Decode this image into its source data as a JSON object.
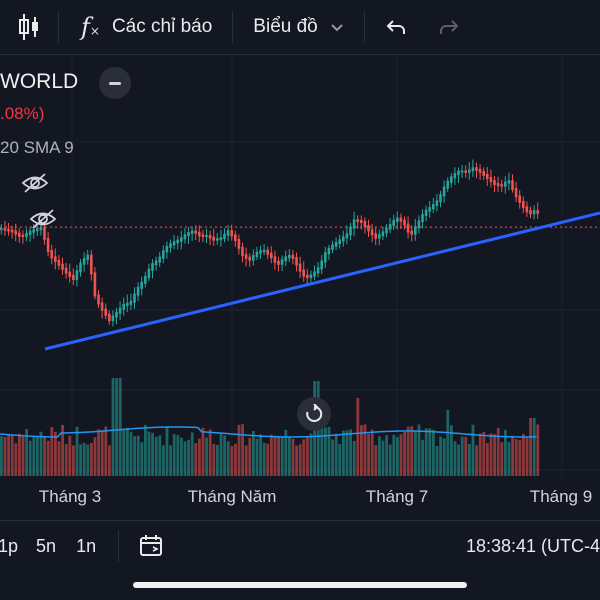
{
  "toolbar": {
    "indicators_label": "Các chỉ báo",
    "chart_type_label": "Biểu đồ"
  },
  "legend": {
    "symbol": "WORLD",
    "change": ".08%)",
    "sma": "20 SMA 9"
  },
  "colors": {
    "background": "#131722",
    "up": "#26a69a",
    "down": "#ef5350",
    "trendline": "#2962ff",
    "volume_ma": "#2196f3"
  },
  "chart_data": {
    "type": "candlestick",
    "x_tick_labels": [
      "Tháng 3",
      "Tháng Năm",
      "Tháng 7",
      "Tháng 9"
    ],
    "close_series": [
      [
        0,
        229
      ],
      [
        10,
        231
      ],
      [
        20,
        237
      ],
      [
        30,
        231
      ],
      [
        40,
        228
      ],
      [
        48,
        255
      ],
      [
        56,
        263
      ],
      [
        64,
        272
      ],
      [
        72,
        279
      ],
      [
        80,
        262
      ],
      [
        87,
        255
      ],
      [
        94,
        298
      ],
      [
        101,
        310
      ],
      [
        108,
        320
      ],
      [
        115,
        313
      ],
      [
        122,
        305
      ],
      [
        129,
        303
      ],
      [
        136,
        289
      ],
      [
        143,
        279
      ],
      [
        150,
        265
      ],
      [
        157,
        260
      ],
      [
        164,
        248
      ],
      [
        171,
        243
      ],
      [
        178,
        240
      ],
      [
        185,
        234
      ],
      [
        192,
        231
      ],
      [
        199,
        236
      ],
      [
        206,
        236
      ],
      [
        213,
        240
      ],
      [
        220,
        238
      ],
      [
        227,
        231
      ],
      [
        234,
        240
      ],
      [
        241,
        255
      ],
      [
        248,
        260
      ],
      [
        255,
        253
      ],
      [
        262,
        250
      ],
      [
        269,
        256
      ],
      [
        276,
        265
      ],
      [
        283,
        258
      ],
      [
        290,
        255
      ],
      [
        297,
        268
      ],
      [
        304,
        278
      ],
      [
        311,
        275
      ],
      [
        318,
        267
      ],
      [
        325,
        251
      ],
      [
        332,
        245
      ],
      [
        339,
        240
      ],
      [
        346,
        234
      ],
      [
        353,
        220
      ],
      [
        360,
        222
      ],
      [
        367,
        230
      ],
      [
        374,
        238
      ],
      [
        381,
        233
      ],
      [
        388,
        226
      ],
      [
        395,
        218
      ],
      [
        402,
        222
      ],
      [
        409,
        236
      ],
      [
        416,
        224
      ],
      [
        423,
        212
      ],
      [
        430,
        207
      ],
      [
        437,
        200
      ],
      [
        444,
        185
      ],
      [
        451,
        176
      ],
      [
        458,
        171
      ],
      [
        465,
        172
      ],
      [
        472,
        168
      ],
      [
        479,
        172
      ],
      [
        486,
        178
      ],
      [
        493,
        184
      ],
      [
        500,
        186
      ],
      [
        507,
        180
      ],
      [
        514,
        195
      ],
      [
        521,
        206
      ],
      [
        528,
        214
      ],
      [
        535,
        210
      ],
      [
        540,
        220
      ]
    ],
    "volume_ma_line": true,
    "trendline": true
  },
  "bottombar": {
    "tf_1": "1p",
    "tf_2": "5n",
    "tf_3": "1n",
    "time": "18:38:41 (UTC-4"
  }
}
